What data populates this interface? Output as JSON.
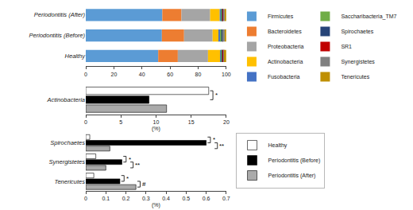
{
  "chart_data": [
    {
      "type": "bar",
      "orientation": "horizontal",
      "stacked": true,
      "grid": false,
      "legend": "upper right",
      "categories": [
        "Healthy",
        "Periodontitis (Before)",
        "Periodontitis (After)"
      ],
      "series": [
        {
          "name": "Firmicutes",
          "color": "#5B9BD5",
          "values": [
            51.5574,
            54.176,
            54.4835
          ]
        },
        {
          "name": "Bacteroidetes",
          "color": "#ED7D31",
          "values": [
            13.9634,
            15.8013,
            13.6208
          ]
        },
        {
          "name": "Proteobacteria",
          "color": "#A5A5A5",
          "values": [
            21.4822,
            20.316,
            20.4313
          ]
        },
        {
          "name": "Actinobacteria",
          "color": "#FFC000",
          "values": [
            8.5929,
            4.5146,
            6.8104
          ]
        },
        {
          "name": "Fusobacteria",
          "color": "#4472C4",
          "values": [
            1.0741,
            1.1286,
            1.135
          ]
        },
        {
          "name": "Saccharibacteria_TM7",
          "color": "#70AD47",
          "values": [
            0.537,
            0.5643,
            0.5675
          ]
        },
        {
          "name": "Spirochaetes",
          "color": "#264478",
          "values": [
            0.537,
            1.1286,
            0.5675
          ]
        },
        {
          "name": "SR1",
          "color": "#C00000",
          "values": [
            0.1074,
            0.1128,
            0.1135
          ]
        },
        {
          "name": "Synergistetes",
          "color": "#808080",
          "values": [
            1.0741,
            1.1286,
            1.135
          ]
        },
        {
          "name": "Tenericutes",
          "color": "#BF8F00",
          "values": [
            1.0741,
            1.1286,
            1.135
          ]
        }
      ],
      "xlim": [
        0,
        100
      ],
      "xticks": [
        0,
        20,
        40,
        60,
        80,
        100
      ]
    },
    {
      "type": "bar",
      "orientation": "horizontal",
      "grid": false,
      "categories": [
        "Actinobacteria"
      ],
      "series": [
        {
          "name": "Healthy",
          "color": "#FFFFFF",
          "values": [
            17.5
          ]
        },
        {
          "name": "Periodontitis (Before)",
          "color": "#000000",
          "values": [
            9.0
          ]
        },
        {
          "name": "Periodontitis (After)",
          "color": "#AAAAAA",
          "values": [
            11.5
          ]
        }
      ],
      "xlabel": "(%)",
      "xlim": [
        0,
        20
      ],
      "xticks": [
        0,
        5,
        10,
        15,
        20
      ],
      "annotations": [
        {
          "text": "*",
          "category": "Actinobacteria",
          "series": [
            "Healthy",
            "Periodontitis (Before)"
          ]
        }
      ]
    },
    {
      "type": "bar",
      "orientation": "horizontal",
      "grid": false,
      "legend": "upper right",
      "categories": [
        "Spirochaetes",
        "Synergistetes",
        "Tenericutes"
      ],
      "series": [
        {
          "name": "Healthy",
          "color": "#FFFFFF",
          "values": [
            0.02,
            0.05,
            0.04
          ]
        },
        {
          "name": "Periodontitis (Before)",
          "color": "#000000",
          "values": [
            0.6,
            0.18,
            0.17
          ]
        },
        {
          "name": "Periodontitis (After)",
          "color": "#AAAAAA",
          "values": [
            0.12,
            0.1,
            0.25
          ]
        }
      ],
      "xlabel": "(%)",
      "xlim": [
        0,
        0.7
      ],
      "xticks": [
        0,
        0.1,
        0.2,
        0.3,
        0.4,
        0.5,
        0.6,
        0.7
      ],
      "annotations": [
        {
          "text": "*",
          "category": "Spirochaetes",
          "series": [
            "Healthy",
            "Periodontitis (Before)"
          ]
        },
        {
          "text": "**",
          "category": "Spirochaetes",
          "series": [
            "Periodontitis (Before)",
            "Periodontitis (After)"
          ]
        },
        {
          "text": "*",
          "category": "Synergistetes",
          "series": [
            "Healthy",
            "Periodontitis (Before)"
          ]
        },
        {
          "text": "**",
          "category": "Synergistetes",
          "series": [
            "Periodontitis (Before)",
            "Periodontitis (After)"
          ]
        },
        {
          "text": "*",
          "category": "Tenericutes",
          "series": [
            "Healthy",
            "Periodontitis (Before)"
          ]
        },
        {
          "text": "#",
          "category": "Tenericutes",
          "series": [
            "Periodontitis (Before)",
            "Periodontitis (After)"
          ]
        }
      ]
    }
  ]
}
